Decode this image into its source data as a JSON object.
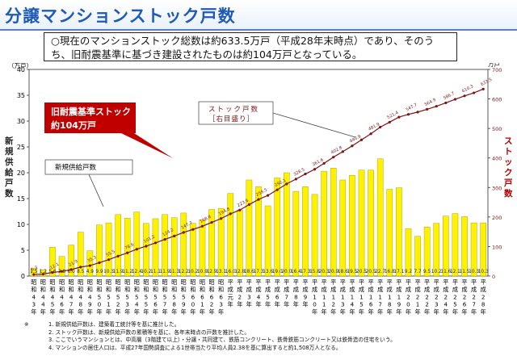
{
  "title": "分譲マンションストック戸数",
  "summary": {
    "line1": "○現在のマンションストック総数は約633.5万戸（平成28年末時点）であり、そのう",
    "line2": "ち、旧耐震基準に基づき建設されたものは約104万戸となっている。"
  },
  "callouts": {
    "old_standard_line1": "旧耐震基準ストック",
    "old_standard_line2": "約104万戸",
    "stock_line1": "ストック戸数",
    "stock_line2": "［右目盛り］",
    "new_supply": "新規供給戸数"
  },
  "colors": {
    "bar": "#fff200",
    "bar_edge": "#9a9200",
    "line": "#7a1414",
    "callout_red": "#c00000",
    "title": "#1f5bb5"
  },
  "notes": {
    "head": "※",
    "items": [
      "1. 新規供給戸数は、建築着工統計等を基に推計した。",
      "2. ストック戸数は、新規供給戸数の累積等を基に、各年末時点の戸数を推計した。",
      "3. ここでいうマンションとは、中高層（3階建て以上）・分譲・共同建て、鉄筋コンクリート、鉄骨鉄筋コンクリート又は鉄骨造の住宅をいう。",
      "4. マンションの居住人口は、平成27年国勢調査による1世帯当たり平均人員2.38を基に算出すると約1,508万人となる。"
    ]
  },
  "chart_data": {
    "type": "bar",
    "left_axis": {
      "unit": "（万戸）",
      "label": "新規供給戸数",
      "ylim": [
        0,
        40
      ],
      "ticks": [
        0,
        5,
        10,
        15,
        20,
        25,
        30,
        35,
        40
      ]
    },
    "right_axis": {
      "unit": "万戸",
      "label": "ストック戸数",
      "ylim": [
        0,
        700
      ],
      "ticks": [
        0,
        100,
        200,
        300,
        400,
        500,
        600,
        700
      ]
    },
    "categories": [
      {
        "era": "昭和",
        "num": "43"
      },
      {
        "era": "昭和",
        "num": "44"
      },
      {
        "era": "昭和",
        "num": "45"
      },
      {
        "era": "昭和",
        "num": "46"
      },
      {
        "era": "昭和",
        "num": "47"
      },
      {
        "era": "昭和",
        "num": "48"
      },
      {
        "era": "昭和",
        "num": "49"
      },
      {
        "era": "昭和",
        "num": "50"
      },
      {
        "era": "昭和",
        "num": "51"
      },
      {
        "era": "昭和",
        "num": "52"
      },
      {
        "era": "昭和",
        "num": "53"
      },
      {
        "era": "昭和",
        "num": "54"
      },
      {
        "era": "昭和",
        "num": "55"
      },
      {
        "era": "昭和",
        "num": "56"
      },
      {
        "era": "昭和",
        "num": "57"
      },
      {
        "era": "昭和",
        "num": "58"
      },
      {
        "era": "昭和",
        "num": "59"
      },
      {
        "era": "昭和",
        "num": "60"
      },
      {
        "era": "昭和",
        "num": "61"
      },
      {
        "era": "昭和",
        "num": "62"
      },
      {
        "era": "昭和",
        "num": "63"
      },
      {
        "era": "平成",
        "num": "元"
      },
      {
        "era": "平成",
        "num": "2"
      },
      {
        "era": "平成",
        "num": "3"
      },
      {
        "era": "平成",
        "num": "4"
      },
      {
        "era": "平成",
        "num": "5"
      },
      {
        "era": "平成",
        "num": "6"
      },
      {
        "era": "平成",
        "num": "7"
      },
      {
        "era": "平成",
        "num": "8"
      },
      {
        "era": "平成",
        "num": "9"
      },
      {
        "era": "平成",
        "num": "10"
      },
      {
        "era": "平成",
        "num": "11"
      },
      {
        "era": "平成",
        "num": "12"
      },
      {
        "era": "平成",
        "num": "13"
      },
      {
        "era": "平成",
        "num": "14"
      },
      {
        "era": "平成",
        "num": "15"
      },
      {
        "era": "平成",
        "num": "16"
      },
      {
        "era": "平成",
        "num": "17"
      },
      {
        "era": "平成",
        "num": "18"
      },
      {
        "era": "平成",
        "num": "19"
      },
      {
        "era": "平成",
        "num": "20"
      },
      {
        "era": "平成",
        "num": "21"
      },
      {
        "era": "平成",
        "num": "22"
      },
      {
        "era": "平成",
        "num": "23"
      },
      {
        "era": "平成",
        "num": "24"
      },
      {
        "era": "平成",
        "num": "25"
      },
      {
        "era": "平成",
        "num": "26"
      },
      {
        "era": "平成",
        "num": "27"
      },
      {
        "era": "平成",
        "num": "28"
      }
    ],
    "year_suffix": "年",
    "series": [
      {
        "name": "新規供給戸数",
        "type": "bar",
        "axis": "left",
        "values": [
          1.5,
          1.2,
          5.6,
          3.8,
          6.0,
          8.5,
          4.9,
          9.9,
          10.3,
          11.9,
          11.2,
          12.4,
          10.2,
          11.1,
          11.9,
          11.3,
          12.2,
          10.2,
          10.9,
          12.9,
          13.1,
          16.0,
          12.8,
          18.6,
          17.3,
          13.6,
          19.0,
          20.0,
          16.4,
          17.3,
          15.8,
          20.3,
          20.9,
          18.6,
          19.5,
          20.5,
          20.5,
          22.7,
          16.8,
          17.1,
          9.2,
          7.7,
          9.5,
          10.2,
          11.6,
          12.1,
          11.5,
          10.3,
          10.3
        ],
        "value_labels": [
          "1.5",
          "1.2",
          "5.6",
          "3.8",
          "6.0",
          "8.5",
          "4.9",
          "9.9",
          "10.3",
          "11.9",
          "11.2",
          "12.4",
          "10.2",
          "11.1",
          "11.9",
          "11.3",
          "12.2",
          "10.2",
          "10.9",
          "12.9",
          "13.1",
          "16.0",
          "12.8",
          "18.6",
          "17.3",
          "13.6",
          "19.0",
          "20.0",
          "16.4",
          "17.3",
          "15.8",
          "20.3",
          "20.9",
          "18.6",
          "19.5",
          "20.5",
          "20.5",
          "22.7",
          "16.8",
          "17.1",
          "9.2",
          "7.7",
          "9.5",
          "10.2",
          "11.6",
          "12.1",
          "11.5",
          "10.3",
          "10.3"
        ]
      },
      {
        "name": "ストック戸数",
        "type": "line",
        "axis": "right",
        "values": [
          5.3,
          6.5,
          12.1,
          15.9,
          21.9,
          30.4,
          35.3,
          45.2,
          55.5,
          67.4,
          78.6,
          91.0,
          101.2,
          112.3,
          124.2,
          135.5,
          147.7,
          157.9,
          168.8,
          181.7,
          194.8,
          210.8,
          223.6,
          242.2,
          259.5,
          273.1,
          292.1,
          312.1,
          328.5,
          345.8,
          361.6,
          381.9,
          402.8,
          421.4,
          440.9,
          461.4,
          481.9,
          504.6,
          521.4,
          538.5,
          547.7,
          555.4,
          564.9,
          575.1,
          586.7,
          598.8,
          610.3,
          620.6,
          633.5
        ],
        "point_labels": [
          "5.3",
          "",
          "12.1",
          "",
          "21.9",
          "",
          "35.3",
          "",
          "55.5",
          "",
          "78.6",
          "",
          "101.2",
          "",
          "124.2",
          "",
          "147.7",
          "",
          "168.8",
          "",
          "194.8",
          "",
          "223.6",
          "",
          "259.5",
          "",
          "292.1",
          "",
          "328.5",
          "",
          "361.6",
          "",
          "402.8",
          "",
          "440.9",
          "",
          "481.9",
          "",
          "521.4",
          "",
          "547.7",
          "",
          "564.9",
          "",
          "586.7",
          "",
          "610.3",
          "",
          "633.5"
        ]
      }
    ]
  }
}
